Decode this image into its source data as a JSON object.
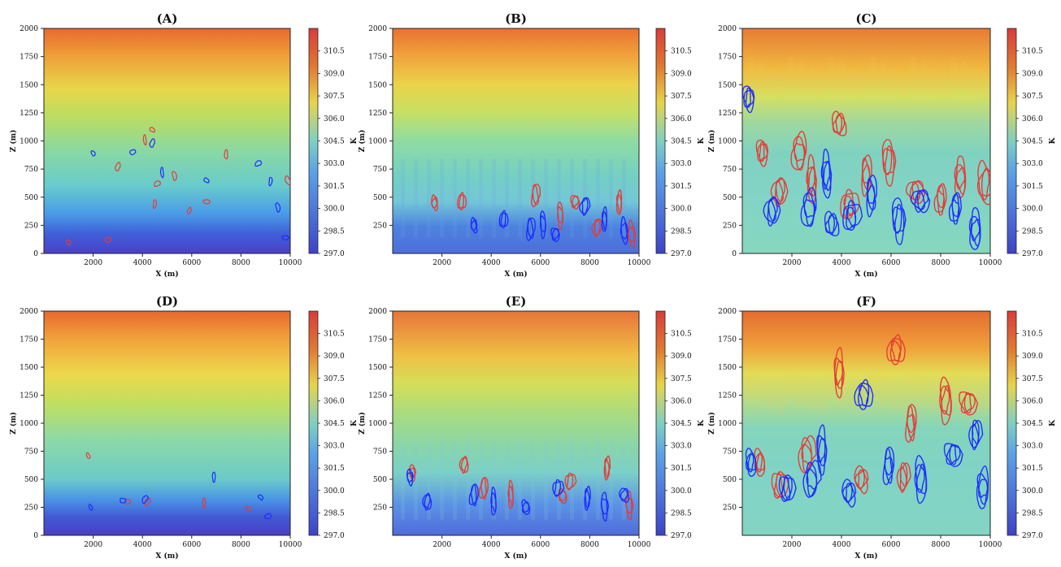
{
  "figure": {
    "description_type": "contour_panels"
  },
  "colors": {
    "cold": "#3d43c5",
    "cool": "#5ba1e6",
    "mid": "#7fd0c2",
    "warm": "#e7d44b",
    "hot": "#e07a31",
    "hottest": "#d83c3a",
    "positive_contour": "#e53b35",
    "negative_contour": "#1d2cff"
  },
  "chart_data": [
    {
      "type": "heatmap",
      "title": "(A)",
      "xlabel": "X (m)",
      "ylabel": "Z (m)",
      "xlim": [
        0,
        10000
      ],
      "ylim": [
        0,
        2000
      ],
      "xticks": [
        2000,
        4000,
        6000,
        8000,
        10000
      ],
      "yticks": [
        0,
        250,
        500,
        750,
        1000,
        1250,
        1500,
        1750,
        2000
      ],
      "colorbar": {
        "label": "K",
        "min": 297.0,
        "max": 312.0,
        "ticks": [
          297.0,
          298.5,
          300.0,
          301.5,
          303.0,
          304.5,
          306.0,
          307.5,
          309.0,
          310.5
        ]
      },
      "contours": {
        "positive_centers": [
          [
            1000,
            100
          ],
          [
            2600,
            120
          ],
          [
            3000,
            770
          ],
          [
            4100,
            1010
          ],
          [
            4400,
            1100
          ],
          [
            4600,
            620
          ],
          [
            4500,
            440
          ],
          [
            5300,
            690
          ],
          [
            6600,
            460
          ],
          [
            5900,
            380
          ],
          [
            7400,
            880
          ],
          [
            9900,
            650
          ]
        ],
        "negative_centers": [
          [
            2000,
            890
          ],
          [
            3600,
            900
          ],
          [
            4400,
            980
          ],
          [
            4800,
            720
          ],
          [
            6600,
            650
          ],
          [
            8700,
            800
          ],
          [
            9200,
            640
          ],
          [
            9500,
            410
          ],
          [
            9800,
            140
          ]
        ]
      }
    },
    {
      "type": "heatmap",
      "title": "(B)",
      "xlabel": "X (m)",
      "ylabel": "Z (m)",
      "xlim": [
        0,
        10000
      ],
      "ylim": [
        0,
        2000
      ],
      "xticks": [
        2000,
        4000,
        6000,
        8000,
        10000
      ],
      "yticks": [
        250,
        500,
        750,
        1000,
        1250,
        1500,
        1750,
        2000
      ],
      "colorbar": {
        "label": "K",
        "min": 297.0,
        "max": 312.0,
        "ticks": [
          297.0,
          298.5,
          300.0,
          301.5,
          303.0,
          304.5,
          306.0,
          307.5,
          309.0,
          310.5
        ]
      },
      "contours": {
        "positive_centers": [
          [
            1700,
            450
          ],
          [
            2800,
            460
          ],
          [
            5800,
            520
          ],
          [
            6800,
            340
          ],
          [
            7400,
            460
          ],
          [
            8300,
            230
          ],
          [
            9200,
            450
          ],
          [
            9700,
            170
          ]
        ],
        "negative_centers": [
          [
            3300,
            250
          ],
          [
            4500,
            300
          ],
          [
            5600,
            220
          ],
          [
            6100,
            260
          ],
          [
            6600,
            170
          ],
          [
            7800,
            420
          ],
          [
            8600,
            300
          ],
          [
            9400,
            200
          ]
        ]
      }
    },
    {
      "type": "heatmap",
      "title": "(C)",
      "xlabel": "X (m)",
      "ylabel": "Z (m)",
      "xlim": [
        0,
        10000
      ],
      "ylim": [
        0,
        2000
      ],
      "xticks": [
        2000,
        4000,
        6000,
        8000,
        10000
      ],
      "yticks": [
        0,
        250,
        500,
        750,
        1000,
        1250,
        1500,
        1750,
        2000
      ],
      "colorbar": {
        "label": "K",
        "min": 297.0,
        "max": 312.0,
        "ticks": [
          297.0,
          298.5,
          300.0,
          301.5,
          303.0,
          304.5,
          306.0,
          307.5,
          309.0,
          310.5
        ]
      },
      "contours": {
        "positive_centers": [
          [
            800,
            900
          ],
          [
            1500,
            550
          ],
          [
            2300,
            900
          ],
          [
            2800,
            650
          ],
          [
            3900,
            1150
          ],
          [
            4300,
            430
          ],
          [
            5000,
            700
          ],
          [
            5900,
            820
          ],
          [
            7000,
            550
          ],
          [
            8000,
            480
          ],
          [
            8800,
            670
          ],
          [
            9800,
            620
          ]
        ],
        "negative_centers": [
          [
            250,
            1380
          ],
          [
            1200,
            380
          ],
          [
            2700,
            400
          ],
          [
            3400,
            700
          ],
          [
            3600,
            260
          ],
          [
            4400,
            330
          ],
          [
            5200,
            520
          ],
          [
            6300,
            300
          ],
          [
            7200,
            470
          ],
          [
            8600,
            400
          ],
          [
            9400,
            210
          ]
        ]
      }
    },
    {
      "type": "heatmap",
      "title": "(D)",
      "xlabel": "X (m)",
      "ylabel": "Z (m)",
      "xlim": [
        0,
        10000
      ],
      "ylim": [
        0,
        2000
      ],
      "xticks": [
        2000,
        4000,
        6000,
        8000,
        10000
      ],
      "yticks": [
        0,
        250,
        500,
        750,
        1000,
        1250,
        1500,
        1750,
        2000
      ],
      "colorbar": {
        "label": "K",
        "min": 297.0,
        "max": 312.0,
        "ticks": [
          297.0,
          298.5,
          300.0,
          301.5,
          303.0,
          304.5,
          306.0,
          307.5,
          309.0,
          310.5
        ]
      },
      "contours": {
        "positive_centers": [
          [
            1800,
            710
          ],
          [
            3400,
            300
          ],
          [
            4200,
            300
          ],
          [
            6500,
            290
          ],
          [
            8300,
            240
          ]
        ],
        "negative_centers": [
          [
            1900,
            250
          ],
          [
            3200,
            310
          ],
          [
            4100,
            320
          ],
          [
            6900,
            520
          ],
          [
            8800,
            340
          ],
          [
            9100,
            170
          ]
        ]
      }
    },
    {
      "type": "heatmap",
      "title": "(E)",
      "xlabel": "X (m)",
      "ylabel": "Z (m)",
      "xlim": [
        0,
        10000
      ],
      "ylim": [
        0,
        2000
      ],
      "xticks": [
        2000,
        4000,
        6000,
        8000,
        10000
      ],
      "yticks": [
        250,
        500,
        750,
        1000,
        1250,
        1500,
        1750,
        2000
      ],
      "colorbar": {
        "label": "K",
        "min": 297.0,
        "max": 312.0,
        "ticks": [
          297.0,
          298.5,
          300.0,
          301.5,
          303.0,
          304.5,
          306.0,
          307.5,
          309.0,
          310.5
        ]
      },
      "contours": {
        "positive_centers": [
          [
            800,
            560
          ],
          [
            2900,
            630
          ],
          [
            3700,
            420
          ],
          [
            4800,
            360
          ],
          [
            6900,
            350
          ],
          [
            7200,
            480
          ],
          [
            8700,
            600
          ],
          [
            9600,
            270
          ]
        ],
        "negative_centers": [
          [
            700,
            520
          ],
          [
            1400,
            300
          ],
          [
            3300,
            360
          ],
          [
            4100,
            300
          ],
          [
            5400,
            250
          ],
          [
            6700,
            420
          ],
          [
            7900,
            330
          ],
          [
            8600,
            260
          ],
          [
            9400,
            360
          ]
        ]
      }
    },
    {
      "type": "heatmap",
      "title": "(F)",
      "xlabel": "X (m)",
      "ylabel": "Z (m)",
      "xlim": [
        0,
        10000
      ],
      "ylim": [
        0,
        2000
      ],
      "xticks": [
        2000,
        4000,
        6000,
        8000,
        10000
      ],
      "yticks": [
        250,
        500,
        750,
        1000,
        1250,
        1500,
        1750,
        2000
      ],
      "colorbar": {
        "label": "K",
        "min": 297.0,
        "max": 312.0,
        "ticks": [
          297.0,
          298.5,
          300.0,
          301.5,
          303.0,
          304.5,
          306.0,
          307.5,
          309.0,
          310.5
        ]
      },
      "contours": {
        "positive_centers": [
          [
            700,
            650
          ],
          [
            1500,
            450
          ],
          [
            2600,
            720
          ],
          [
            3900,
            1450
          ],
          [
            4800,
            500
          ],
          [
            6200,
            1650
          ],
          [
            6800,
            1000
          ],
          [
            8200,
            1200
          ],
          [
            9100,
            1180
          ],
          [
            6500,
            520
          ]
        ],
        "negative_centers": [
          [
            350,
            650
          ],
          [
            1800,
            420
          ],
          [
            2800,
            500
          ],
          [
            3200,
            760
          ],
          [
            4300,
            380
          ],
          [
            4900,
            1250
          ],
          [
            5900,
            620
          ],
          [
            7200,
            500
          ],
          [
            8500,
            720
          ],
          [
            9400,
            900
          ],
          [
            9700,
            420
          ]
        ]
      }
    }
  ]
}
